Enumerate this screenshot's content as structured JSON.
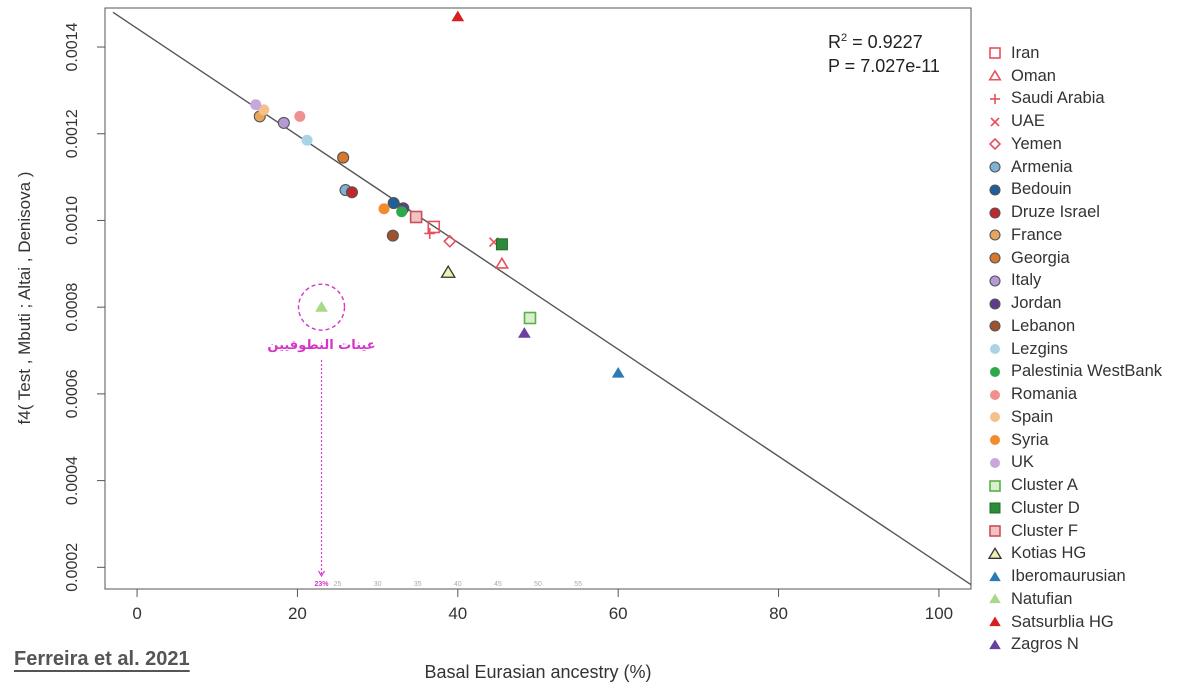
{
  "chart_data": {
    "type": "scatter",
    "title": "",
    "xlabel": "Basal Eurasian ancestry (%)",
    "ylabel": "f4( Test , Mbuti ; Altai , Denisova )",
    "xlim": [
      -4,
      104
    ],
    "ylim": [
      0.00015,
      0.00149
    ],
    "x_ticks": [
      "0",
      "20",
      "40",
      "60",
      "80",
      "100"
    ],
    "x_tick_values": [
      0,
      20,
      40,
      60,
      80,
      100
    ],
    "y_ticks": [
      "0.0002",
      "0.0004",
      "0.0006",
      "0.0008",
      "0.0010",
      "0.0012",
      "0.0014"
    ],
    "y_tick_values": [
      0.0002,
      0.0004,
      0.0006,
      0.0008,
      0.001,
      0.0012,
      0.0014
    ],
    "regression_line": {
      "x": [
        -3,
        104
      ],
      "y": [
        0.00148,
        0.00016
      ]
    },
    "stats": {
      "r2_label": "R",
      "r2_sup": "2",
      "r2_value": " = 0.9227",
      "p_value": "P = 7.027e-11"
    },
    "series": [
      {
        "name": "Iran",
        "marker": "open-square",
        "color": "#e8505b",
        "points": [
          [
            37,
            0.000985
          ]
        ]
      },
      {
        "name": "Oman",
        "marker": "open-triangle",
        "color": "#e8505b",
        "points": [
          [
            45.5,
            0.0009
          ]
        ]
      },
      {
        "name": "Saudi Arabia",
        "marker": "plus",
        "color": "#e8505b",
        "points": [
          [
            36.5,
            0.00097
          ]
        ]
      },
      {
        "name": "UAE",
        "marker": "cross",
        "color": "#e8505b",
        "points": [
          [
            44.5,
            0.00095
          ]
        ]
      },
      {
        "name": "Yemen",
        "marker": "open-diamond",
        "color": "#e8505b",
        "points": [
          [
            39,
            0.000952
          ]
        ]
      },
      {
        "name": "Armenia",
        "marker": "ring",
        "color": "#7fb3d5",
        "points": [
          [
            26,
            0.00107
          ]
        ]
      },
      {
        "name": "Bedouin",
        "marker": "ring",
        "color": "#1f5f99",
        "points": [
          [
            32,
            0.00104
          ]
        ]
      },
      {
        "name": "Druze Israel",
        "marker": "ring",
        "color": "#c0282d",
        "points": [
          [
            26.8,
            0.001065
          ]
        ]
      },
      {
        "name": "France",
        "marker": "ring",
        "color": "#e8a65c",
        "points": [
          [
            15.3,
            0.00124
          ]
        ]
      },
      {
        "name": "Georgia",
        "marker": "ring",
        "color": "#d9772b",
        "points": [
          [
            25.7,
            0.001145
          ]
        ]
      },
      {
        "name": "Italy",
        "marker": "ring",
        "color": "#b59ad4",
        "points": [
          [
            18.3,
            0.001225
          ]
        ]
      },
      {
        "name": "Jordan",
        "marker": "ring",
        "color": "#5c3c8c",
        "points": [
          [
            33.2,
            0.001028
          ]
        ]
      },
      {
        "name": "Lebanon",
        "marker": "ring",
        "color": "#a0522d",
        "points": [
          [
            31.9,
            0.000965
          ]
        ]
      },
      {
        "name": "Lezgins",
        "marker": "dot",
        "color": "#a8d4e6",
        "points": [
          [
            21.2,
            0.001185
          ]
        ]
      },
      {
        "name": "Palestinia WestBank",
        "marker": "dot",
        "color": "#2ea84a",
        "points": [
          [
            33,
            0.00102
          ]
        ]
      },
      {
        "name": "Romania",
        "marker": "dot",
        "color": "#f08f8f",
        "points": [
          [
            20.3,
            0.00124
          ]
        ]
      },
      {
        "name": "Spain",
        "marker": "dot",
        "color": "#f5c08a",
        "points": [
          [
            15.8,
            0.001255
          ]
        ]
      },
      {
        "name": "Syria",
        "marker": "dot",
        "color": "#f28b2e",
        "points": [
          [
            30.8,
            0.001027
          ]
        ]
      },
      {
        "name": "UK",
        "marker": "dot",
        "color": "#c8a8dc",
        "points": [
          [
            14.8,
            0.001267
          ]
        ]
      },
      {
        "name": "Cluster A",
        "marker": "square-a",
        "color": "#5ab04a",
        "points": [
          [
            49,
            0.000775
          ]
        ]
      },
      {
        "name": "Cluster D",
        "marker": "square-d",
        "color": "#2d8a3a",
        "points": [
          [
            45.5,
            0.000945
          ]
        ]
      },
      {
        "name": "Cluster F",
        "marker": "square-f",
        "color": "#c8505b",
        "points": [
          [
            34.8,
            0.001008
          ]
        ]
      },
      {
        "name": "Kotias HG",
        "marker": "triangle-k",
        "color": "#c9c96a",
        "points": [
          [
            38.8,
            0.00088
          ]
        ]
      },
      {
        "name": "Iberomaurusian",
        "marker": "triangle",
        "color": "#2a7ab8",
        "points": [
          [
            60,
            0.000648
          ]
        ]
      },
      {
        "name": "Natufian",
        "marker": "triangle",
        "color": "#a6d98a",
        "points": [
          [
            23,
            0.0008
          ]
        ]
      },
      {
        "name": "Satsurblia HG",
        "marker": "triangle",
        "color": "#d42020",
        "points": [
          [
            40,
            0.00147
          ]
        ]
      },
      {
        "name": "Zagros N",
        "marker": "triangle",
        "color": "#6a3fa0",
        "points": [
          [
            48.3,
            0.00074
          ]
        ]
      }
    ],
    "annotations": {
      "natufian_label": "عينات النطوفيين",
      "mini_ticks": [
        "23%",
        "25",
        "30",
        "35",
        "40",
        "45",
        "50",
        "55"
      ],
      "mini_tick_values": [
        23,
        25,
        30,
        35,
        40,
        45,
        50,
        55
      ],
      "highlight_x": 23,
      "highlight_y": 0.0008
    },
    "legend_position": "right"
  },
  "citation": "Ferreira et al. 2021",
  "colors": {
    "annotation": "#d633c8",
    "regression": "#555555",
    "axis": "#555555"
  }
}
